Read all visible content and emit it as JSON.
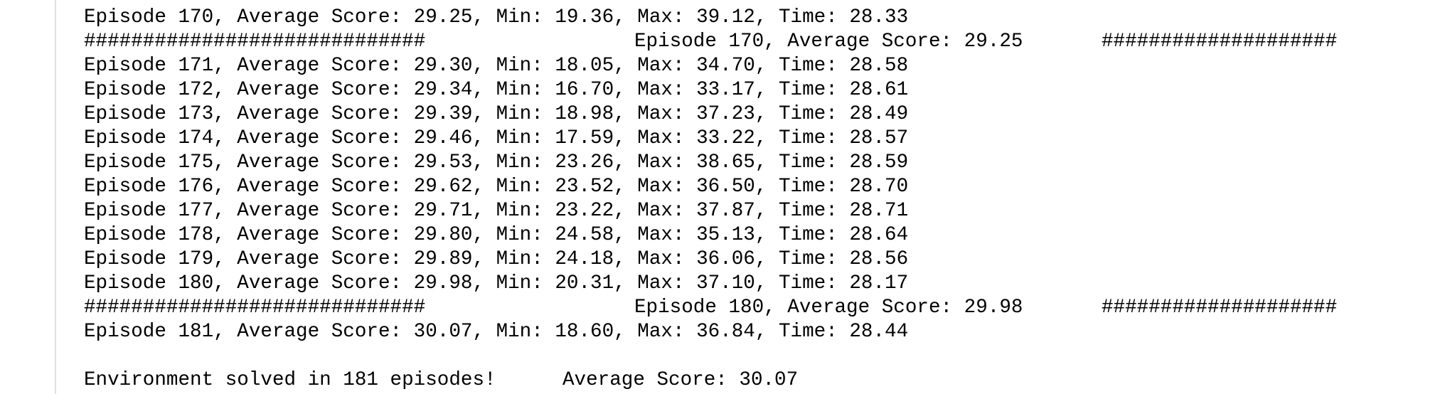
{
  "log": {
    "lines": [
      {
        "text": "Episode 170, Average Score: 29.25, Min: 19.36, Max: 39.12, Time: 28.33"
      },
      {
        "left": "#############################",
        "center": "Episode 170, Average Score: 29.25",
        "right": "####################"
      },
      {
        "text": "Episode 171, Average Score: 29.30, Min: 18.05, Max: 34.70, Time: 28.58"
      },
      {
        "text": "Episode 172, Average Score: 29.34, Min: 16.70, Max: 33.17, Time: 28.61"
      },
      {
        "text": "Episode 173, Average Score: 29.39, Min: 18.98, Max: 37.23, Time: 28.49"
      },
      {
        "text": "Episode 174, Average Score: 29.46, Min: 17.59, Max: 33.22, Time: 28.57"
      },
      {
        "text": "Episode 175, Average Score: 29.53, Min: 23.26, Max: 38.65, Time: 28.59"
      },
      {
        "text": "Episode 176, Average Score: 29.62, Min: 23.52, Max: 36.50, Time: 28.70"
      },
      {
        "text": "Episode 177, Average Score: 29.71, Min: 23.22, Max: 37.87, Time: 28.71"
      },
      {
        "text": "Episode 178, Average Score: 29.80, Min: 24.58, Max: 35.13, Time: 28.64"
      },
      {
        "text": "Episode 179, Average Score: 29.89, Min: 24.18, Max: 36.06, Time: 28.56"
      },
      {
        "text": "Episode 180, Average Score: 29.98, Min: 20.31, Max: 37.10, Time: 28.17"
      },
      {
        "left": "#############################",
        "center": "Episode 180, Average Score: 29.98",
        "right": "####################"
      },
      {
        "text": "Episode 181, Average Score: 30.07, Min: 18.60, Max: 36.84, Time: 28.44"
      }
    ],
    "summary": {
      "solved": "Environment solved in 181 episodes!",
      "score": "Average Score: 30.07"
    }
  }
}
